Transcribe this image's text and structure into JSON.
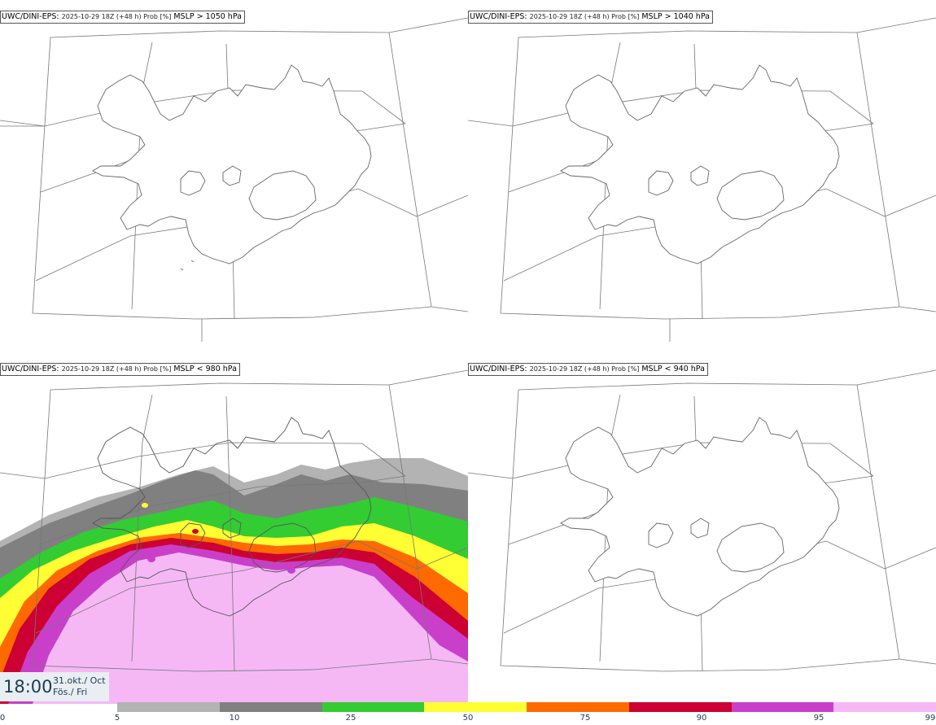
{
  "panels": [
    {
      "model": "UWC/DINI-EPS",
      "meta": "2025-10-29 18Z (+48 h) Prob [%]",
      "condition": "MSLP > 1050 hPa"
    },
    {
      "model": "UWC/DINI-EPS",
      "meta": "2025-10-29 18Z (+48 h) Prob [%]",
      "condition": "MSLP > 1040 hPa"
    },
    {
      "model": "UWC/DINI-EPS",
      "meta": "2025-10-29 18Z (+48 h) Prob [%]",
      "condition": "MSLP < 980 hPa"
    },
    {
      "model": "UWC/DINI-EPS",
      "meta": "2025-10-29 18Z (+48 h) Prob [%]",
      "condition": "MSLP < 940 hPa"
    }
  ],
  "valid_time": {
    "hour": "18:00",
    "date_line1": "31.okt./ Oct",
    "date_line2": "Fös./ Fri"
  },
  "legend": {
    "ticks": [
      "0",
      "5",
      "10",
      "25",
      "50",
      "75",
      "90",
      "95",
      "99"
    ],
    "colors": [
      "#b3b3b3",
      "#808080",
      "#33cc33",
      "#ffff33",
      "#ff6a00",
      "#cc0033",
      "#c93fc9",
      "#f5b8f5"
    ]
  }
}
